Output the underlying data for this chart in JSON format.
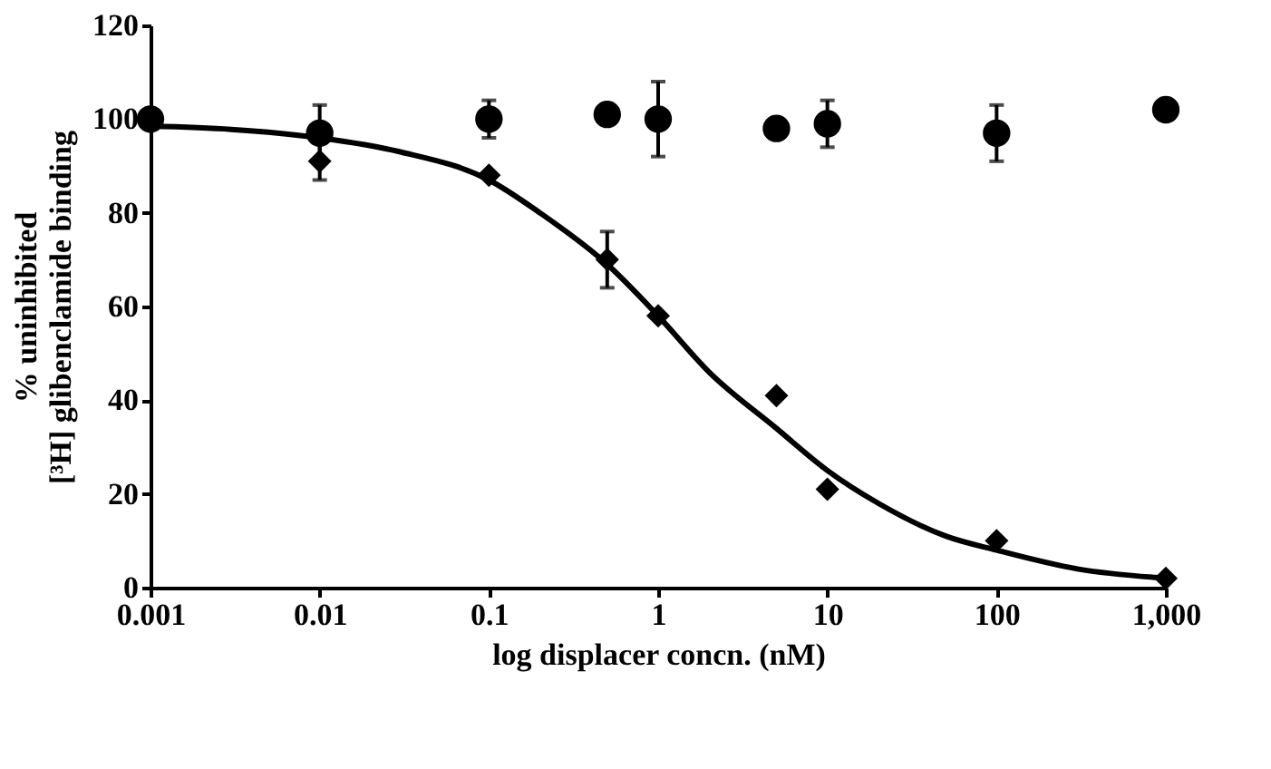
{
  "chart_data": {
    "type": "scatter",
    "xlabel": "log displacer concn. (nM)",
    "ylabel": "% uninhibited\n[³H] glibenclamide binding",
    "log": "x",
    "grid": false,
    "xlim": [
      0.001,
      1000
    ],
    "ylim": [
      0,
      120
    ],
    "xticks": [
      0.001,
      0.01,
      0.1,
      1,
      10,
      100,
      {
        "value": 1000,
        "label": "1,000"
      }
    ],
    "yticks": [
      0,
      20,
      40,
      60,
      80,
      100,
      120
    ],
    "series": [
      {
        "marker": "circle",
        "color": "#000000",
        "x": [
          0.001,
          0.01,
          0.1,
          0.5,
          1,
          5,
          10,
          100,
          1000
        ],
        "values": [
          100,
          97,
          100,
          101,
          100,
          98,
          99,
          97,
          102
        ],
        "errors": [
          null,
          6,
          4,
          null,
          8,
          null,
          5,
          6,
          null
        ]
      },
      {
        "marker": "diamond",
        "color": "#000000",
        "x": [
          0.01,
          0.1,
          0.5,
          1,
          5,
          10,
          100,
          1000
        ],
        "values": [
          91,
          88,
          70,
          58,
          41,
          21,
          10,
          2
        ],
        "errors": [
          4,
          null,
          6,
          null,
          null,
          null,
          null,
          null
        ]
      },
      {
        "type": "line",
        "marker": "none",
        "line_style": "solid",
        "color": "#000000",
        "x": [
          0.001,
          0.003,
          0.01,
          0.03,
          0.1,
          0.2,
          0.5,
          1,
          2,
          5,
          10,
          20,
          50,
          100,
          300,
          1000
        ],
        "values": [
          98.5,
          97.8,
          96,
          93,
          87,
          80,
          69,
          58,
          46,
          34,
          25,
          18,
          11,
          8,
          4,
          2
        ]
      }
    ]
  }
}
